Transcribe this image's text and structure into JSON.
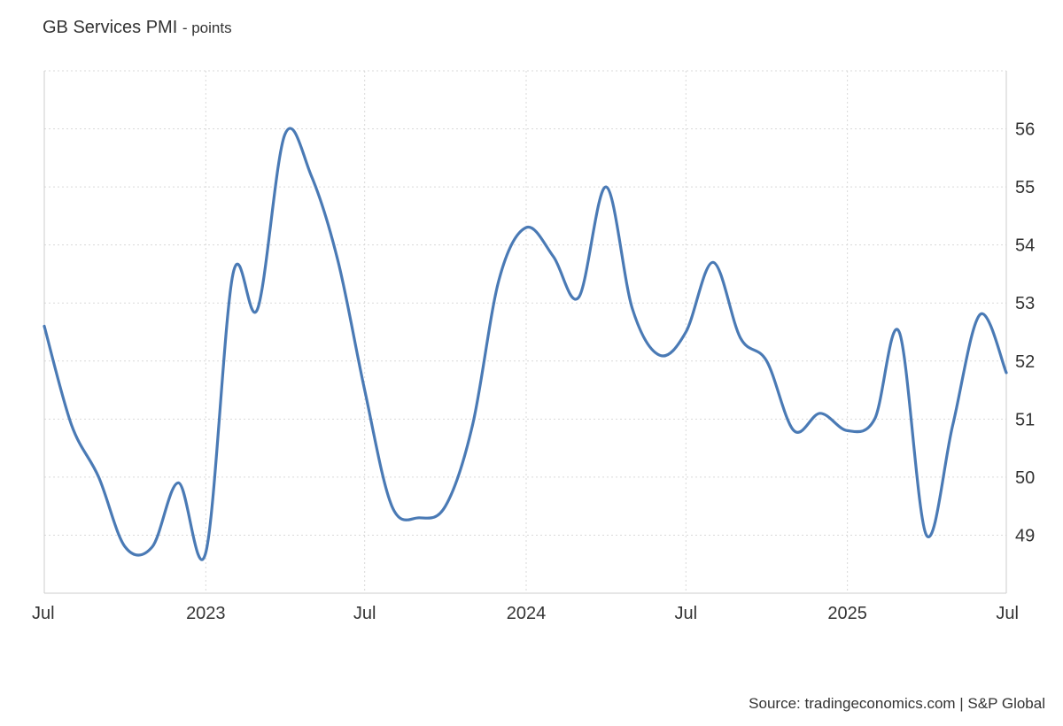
{
  "title": "GB Services PMI",
  "unit_label": "- points",
  "source": "Source: tradingeconomics.com | S&P Global",
  "colors": {
    "line": "#4a7ab5",
    "grid": "#d9d9d9",
    "axis": "#cccccc"
  },
  "chart_data": {
    "type": "line",
    "title": "GB Services PMI",
    "unit": "points",
    "x_ticks": [
      {
        "label": "Jul",
        "date": "2022-07-01"
      },
      {
        "label": "2023",
        "date": "2023-01-01"
      },
      {
        "label": "Jul",
        "date": "2023-07-01"
      },
      {
        "label": "2024",
        "date": "2024-01-01"
      },
      {
        "label": "Jul",
        "date": "2024-07-01"
      },
      {
        "label": "2025",
        "date": "2025-01-01"
      },
      {
        "label": "Jul",
        "date": "2025-07-01"
      }
    ],
    "y_ticks": [
      49,
      50,
      51,
      52,
      53,
      54,
      55,
      56
    ],
    "ylim": [
      48,
      57
    ],
    "grid": true,
    "series": [
      {
        "points": [
          {
            "date": "2022-07-01",
            "value": 52.6
          },
          {
            "date": "2022-08-01",
            "value": 50.9
          },
          {
            "date": "2022-09-01",
            "value": 50.0
          },
          {
            "date": "2022-10-01",
            "value": 48.8
          },
          {
            "date": "2022-11-01",
            "value": 48.8
          },
          {
            "date": "2022-12-01",
            "value": 49.9
          },
          {
            "date": "2023-01-01",
            "value": 48.7
          },
          {
            "date": "2023-02-01",
            "value": 53.5
          },
          {
            "date": "2023-03-01",
            "value": 52.9
          },
          {
            "date": "2023-04-01",
            "value": 55.9
          },
          {
            "date": "2023-05-01",
            "value": 55.2
          },
          {
            "date": "2023-06-01",
            "value": 53.7
          },
          {
            "date": "2023-07-01",
            "value": 51.5
          },
          {
            "date": "2023-08-01",
            "value": 49.5
          },
          {
            "date": "2023-09-01",
            "value": 49.3
          },
          {
            "date": "2023-10-01",
            "value": 49.5
          },
          {
            "date": "2023-11-01",
            "value": 50.9
          },
          {
            "date": "2023-12-01",
            "value": 53.4
          },
          {
            "date": "2024-01-01",
            "value": 54.3
          },
          {
            "date": "2024-02-01",
            "value": 53.8
          },
          {
            "date": "2024-03-01",
            "value": 53.1
          },
          {
            "date": "2024-04-01",
            "value": 55.0
          },
          {
            "date": "2024-05-01",
            "value": 52.9
          },
          {
            "date": "2024-06-01",
            "value": 52.1
          },
          {
            "date": "2024-07-01",
            "value": 52.5
          },
          {
            "date": "2024-08-01",
            "value": 53.7
          },
          {
            "date": "2024-09-01",
            "value": 52.4
          },
          {
            "date": "2024-10-01",
            "value": 52.0
          },
          {
            "date": "2024-11-01",
            "value": 50.8
          },
          {
            "date": "2024-12-01",
            "value": 51.1
          },
          {
            "date": "2025-01-01",
            "value": 50.8
          },
          {
            "date": "2025-02-01",
            "value": 51.0
          },
          {
            "date": "2025-03-01",
            "value": 52.5
          },
          {
            "date": "2025-04-01",
            "value": 49.0
          },
          {
            "date": "2025-05-01",
            "value": 50.9
          },
          {
            "date": "2025-06-01",
            "value": 52.8
          },
          {
            "date": "2025-07-01",
            "value": 51.8
          }
        ]
      }
    ]
  }
}
